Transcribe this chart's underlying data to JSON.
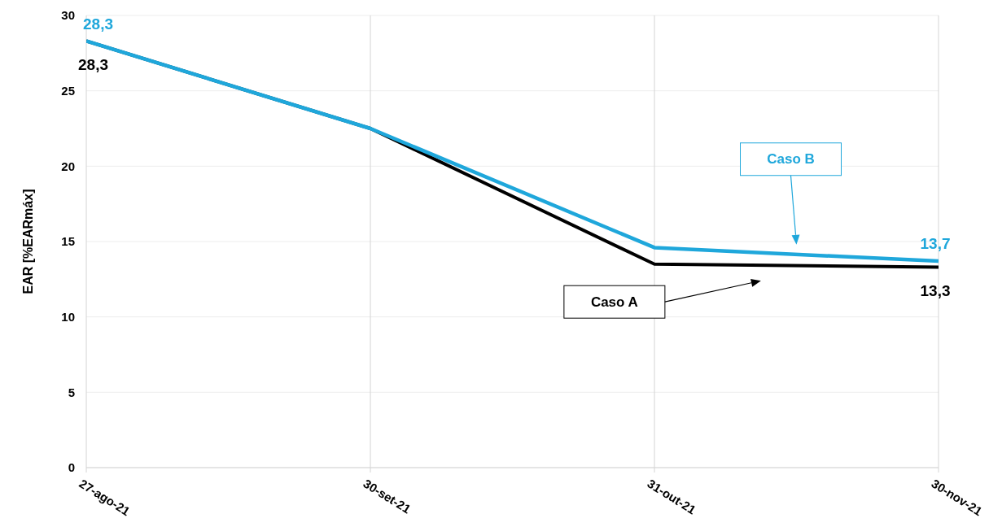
{
  "chart_data": {
    "type": "line",
    "ylabel": "EAR [%EARmáx]",
    "categories": [
      "27-ago-21",
      "30-set-21",
      "31-out-21",
      "30-nov-21"
    ],
    "series": [
      {
        "name": "Caso A",
        "color": "#000000",
        "values": [
          28.3,
          22.5,
          13.5,
          13.3
        ],
        "value_labels": [
          "28,3",
          null,
          null,
          "13,3"
        ]
      },
      {
        "name": "Caso B",
        "color": "#1fa7db",
        "values": [
          28.3,
          22.5,
          14.6,
          13.7
        ],
        "value_labels": [
          "28,3",
          null,
          null,
          "13,7"
        ]
      }
    ],
    "ylim": [
      0,
      30
    ],
    "yticks": [
      0,
      5,
      10,
      15,
      20,
      25,
      30
    ],
    "grid": true
  }
}
